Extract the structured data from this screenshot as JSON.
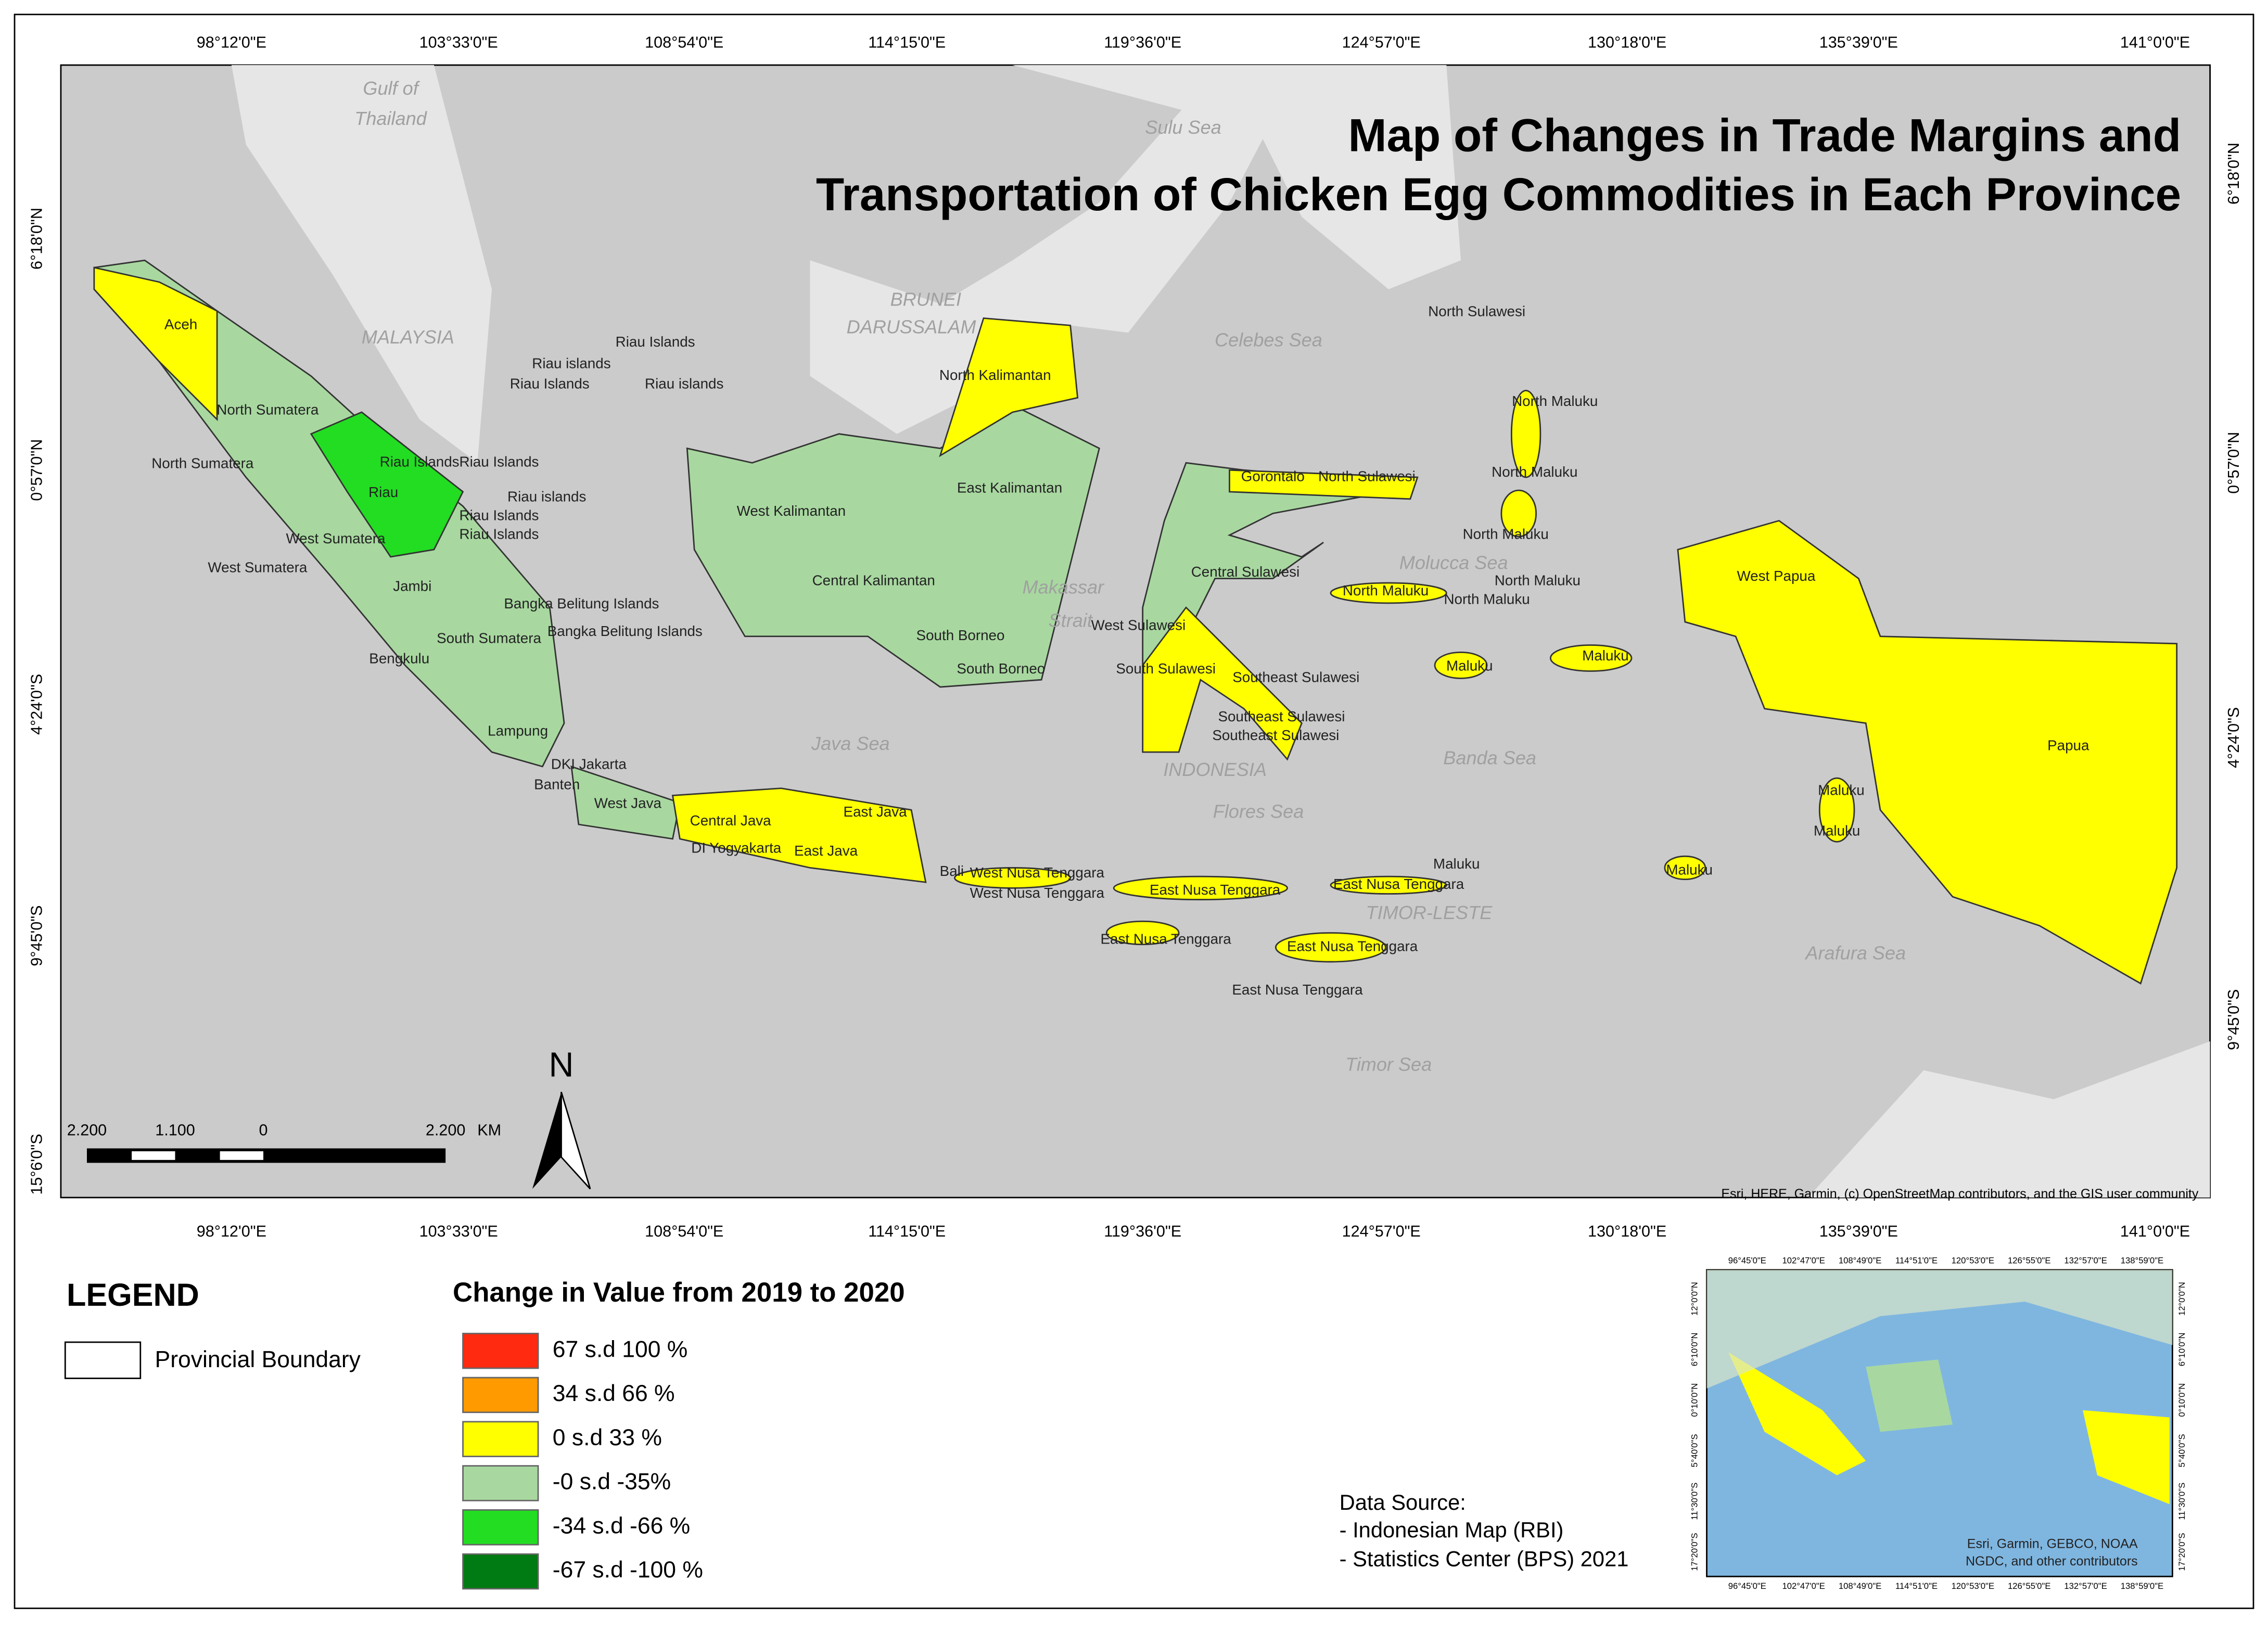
{
  "title": [
    "Map of Changes in Trade Margins and",
    "Transportation of Chicken Egg Commodities in Each Province"
  ],
  "lon_labels": [
    "98°12'0\"E",
    "103°33'0\"E",
    "108°54'0\"E",
    "114°15'0\"E",
    "119°36'0\"E",
    "124°57'0\"E",
    "130°18'0\"E",
    "135°39'0\"E",
    "141°0'0\"E"
  ],
  "lat_labels": [
    "6°18'0\"N",
    "0°57'0\"N",
    "4°24'0\"S",
    "9°45'0\"S",
    "15°6'0\"S"
  ],
  "sea_labels": [
    "Gulf of",
    "Thailand",
    "Sulu Sea",
    "MALAYSIA",
    "BRUNEI",
    "DARUSSALAM",
    "Celebes Sea",
    "Molucca Sea",
    "Makassar",
    "Strait",
    "Java Sea",
    "INDONESIA",
    "Flores Sea",
    "Banda Sea",
    "TIMOR-LESTE",
    "Arafura Sea",
    "Timor Sea"
  ],
  "province_labels": [
    "Aceh",
    "North Sumatera",
    "North Sumatera",
    "Riau",
    "Riau Islands",
    "Riau Islands",
    "Riau islands",
    "Riau Islands",
    "Riau Islands",
    "Riau islands",
    "Riau Islands",
    "Riau Islands",
    "Riau islands",
    "West Sumatera",
    "West Sumatera",
    "Jambi",
    "Bangka Belitung Islands",
    "Bangka Belitung Islands",
    "South Sumatera",
    "Bengkulu",
    "Lampung",
    "DKI Jakarta",
    "Banten",
    "West Java",
    "Central Java",
    "DI Yogyakarta",
    "East Java",
    "East Java",
    "Bali",
    "West Nusa Tenggara",
    "West Nusa Tenggara",
    "East Nusa Tenggara",
    "East Nusa Tenggara",
    "East Nusa Tenggara",
    "East Nusa Tenggara",
    "East Nusa Tenggara",
    "West Kalimantan",
    "Central Kalimantan",
    "East Kalimantan",
    "North Kalimantan",
    "South Borneo",
    "South Borneo",
    "Gorontalo",
    "North Sulawesi",
    "North Sulawesi",
    "Central Sulawesi",
    "West Sulawesi",
    "South Sulawesi",
    "Southeast Sulawesi",
    "Southeast Sulawesi",
    "Southeast Sulawesi",
    "North Maluku",
    "North Maluku",
    "North Maluku",
    "North Maluku",
    "North Maluku",
    "North Maluku",
    "Maluku",
    "Maluku",
    "Maluku",
    "Maluku",
    "Maluku",
    "Maluku",
    "West Papua",
    "Papua"
  ],
  "scale_bar": {
    "labels": [
      "2.200",
      "1.100",
      "0",
      "2.200"
    ],
    "unit": "KM"
  },
  "north_arrow": "N",
  "attribution": "Esri, HERE, Garmin, (c) OpenStreetMap contributors, and the GIS user community",
  "legend": {
    "title": "LEGEND",
    "boundary_label": "Provincial Boundary",
    "classes_title": "Change in Value from 2019 to 2020",
    "classes": [
      {
        "label": "67 s.d 100 %",
        "color": "#ff2a0f"
      },
      {
        "label": "34 s.d 66 %",
        "color": "#ff9a00"
      },
      {
        "label": "0 s.d 33 %",
        "color": "#ffff00"
      },
      {
        "label": "-0 s.d -35%",
        "color": "#a8d8a0"
      },
      {
        "label": "-34 s.d -66 %",
        "color": "#22dd22"
      },
      {
        "label": "-67 s.d -100 %",
        "color": "#007a12"
      }
    ]
  },
  "data_source": [
    "Data Source:",
    "- Indonesian Map (RBI)",
    "- Statistics Center (BPS) 2021"
  ],
  "inset": {
    "attribution": [
      "Esri, Garmin, GEBCO, NOAA",
      "NGDC, and other contributors"
    ],
    "lon_labels": [
      "96°45'0\"E",
      "102°47'0\"E",
      "108°49'0\"E",
      "114°51'0\"E",
      "120°53'0\"E",
      "126°55'0\"E",
      "132°57'0\"E",
      "138°59'0\"E"
    ],
    "lat_labels": [
      "12°0'0\"N",
      "6°10'0\"N",
      "0°10'0\"N",
      "5°40'0\"S",
      "11°30'0\"S",
      "17°20'0\"S"
    ]
  }
}
